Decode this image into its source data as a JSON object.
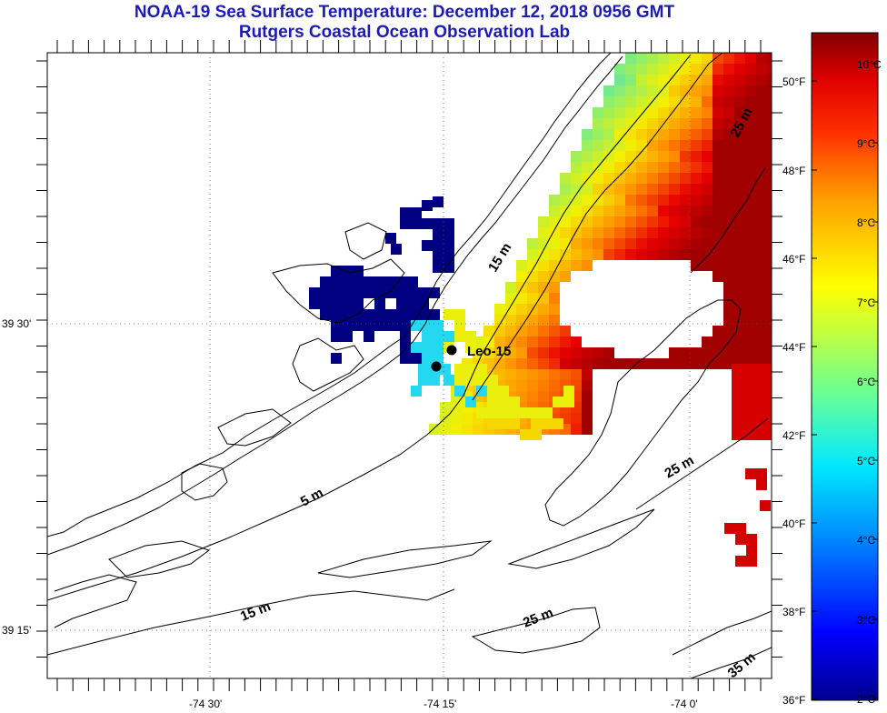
{
  "title": {
    "line1": "NOAA-19 Sea Surface Temperature:  December 12, 2018 0956 GMT",
    "line2": "Rutgers Coastal Ocean Observation Lab"
  },
  "axes": {
    "lon_labels": [
      "-74 30'",
      "-74 15'",
      "-74 0'"
    ],
    "lat_labels": [
      "39 30'",
      "39 15'"
    ]
  },
  "station": {
    "name": "Leo-15"
  },
  "contours": [
    "15 m",
    "25 m",
    "25 m",
    "5 m",
    "15 m",
    "25 m",
    "35 m"
  ],
  "colorbar": {
    "f_labels": [
      "50°F",
      "48°F",
      "46°F",
      "44°F",
      "42°F",
      "40°F",
      "38°F",
      "36°F"
    ],
    "c_labels": [
      "10°C",
      "9°C",
      "8°C",
      "7°C",
      "6°C",
      "5°C",
      "4°C",
      "3°C",
      "2°C"
    ],
    "colors": [
      "#00008f",
      "#0000ff",
      "#00a0ff",
      "#00ffff",
      "#60ff9f",
      "#a0ff60",
      "#ffff00",
      "#ffa000",
      "#ff4000",
      "#ff0000",
      "#800000"
    ]
  },
  "sst_colors": {
    "dark_blue": "#000080",
    "cyan": "#24d8f0",
    "light_green": "#8cef6e",
    "yellow": "#f4f000",
    "orange": "#ff8c00",
    "red": "#e80000",
    "dark_red": "#a00000"
  }
}
